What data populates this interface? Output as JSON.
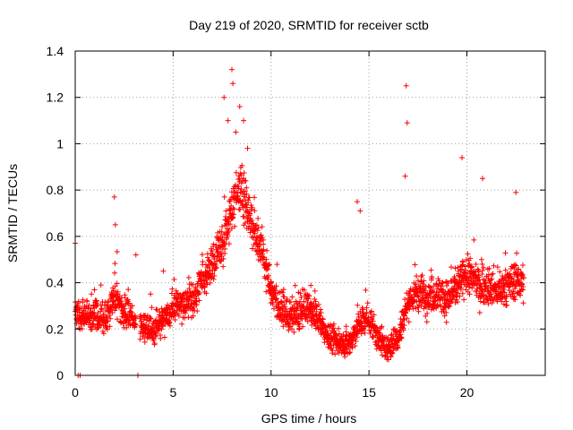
{
  "chart_data": {
    "type": "scatter",
    "title": "Day 219 of 2020, SRMTID for receiver sctb",
    "xlabel": "GPS time / hours",
    "ylabel": "SRMTID / TECUs",
    "xlim": [
      0,
      24
    ],
    "ylim": [
      0,
      1.4
    ],
    "x_ticks": [
      "0",
      "5",
      "10",
      "15",
      "20"
    ],
    "y_ticks": [
      "0",
      "0.2",
      "0.4",
      "0.6",
      "0.8",
      "1",
      "1.2",
      "1.4"
    ],
    "grid": true,
    "marker": "+",
    "color": "#ff0000",
    "profile_description": "Dense scatter of SRMTID values from about 0 to 23 GPS hours",
    "profile": [
      [
        0.0,
        0.28
      ],
      [
        0.5,
        0.25
      ],
      [
        1.0,
        0.26
      ],
      [
        1.5,
        0.24
      ],
      [
        2.0,
        0.34
      ],
      [
        2.5,
        0.27
      ],
      [
        3.0,
        0.24
      ],
      [
        3.5,
        0.21
      ],
      [
        4.0,
        0.19
      ],
      [
        4.5,
        0.24
      ],
      [
        5.0,
        0.28
      ],
      [
        5.5,
        0.31
      ],
      [
        6.0,
        0.32
      ],
      [
        6.5,
        0.42
      ],
      [
        7.0,
        0.48
      ],
      [
        7.5,
        0.56
      ],
      [
        8.0,
        0.72
      ],
      [
        8.5,
        0.82
      ],
      [
        9.0,
        0.66
      ],
      [
        9.5,
        0.56
      ],
      [
        10.0,
        0.36
      ],
      [
        10.5,
        0.29
      ],
      [
        11.0,
        0.25
      ],
      [
        11.5,
        0.27
      ],
      [
        12.0,
        0.29
      ],
      [
        12.5,
        0.23
      ],
      [
        13.0,
        0.16
      ],
      [
        13.5,
        0.14
      ],
      [
        14.0,
        0.14
      ],
      [
        14.5,
        0.22
      ],
      [
        15.0,
        0.25
      ],
      [
        15.5,
        0.15
      ],
      [
        16.0,
        0.11
      ],
      [
        16.5,
        0.17
      ],
      [
        17.0,
        0.32
      ],
      [
        17.5,
        0.36
      ],
      [
        18.0,
        0.34
      ],
      [
        18.5,
        0.36
      ],
      [
        19.0,
        0.33
      ],
      [
        19.5,
        0.38
      ],
      [
        20.0,
        0.44
      ],
      [
        20.5,
        0.4
      ],
      [
        21.0,
        0.38
      ],
      [
        21.5,
        0.36
      ],
      [
        22.0,
        0.37
      ],
      [
        22.5,
        0.42
      ],
      [
        22.9,
        0.4
      ]
    ],
    "spread": 0.07,
    "gap_hours": [
      3.1,
      3.3
    ],
    "outliers": [
      [
        0.0,
        0.57
      ],
      [
        2.0,
        0.77
      ],
      [
        2.05,
        0.65
      ],
      [
        3.1,
        0.52
      ],
      [
        4.5,
        0.45
      ],
      [
        7.6,
        1.2
      ],
      [
        7.8,
        1.1
      ],
      [
        8.0,
        1.32
      ],
      [
        8.05,
        1.26
      ],
      [
        8.2,
        1.05
      ],
      [
        8.4,
        1.16
      ],
      [
        8.6,
        1.1
      ],
      [
        8.8,
        0.98
      ],
      [
        14.4,
        0.75
      ],
      [
        14.55,
        0.71
      ],
      [
        16.9,
        1.25
      ],
      [
        16.95,
        1.09
      ],
      [
        16.85,
        0.86
      ],
      [
        19.75,
        0.94
      ],
      [
        20.8,
        0.85
      ],
      [
        22.5,
        0.79
      ],
      [
        0.25,
        0.0
      ],
      [
        0.15,
        0.0
      ],
      [
        3.2,
        0.0
      ]
    ],
    "point_count": 2400
  }
}
